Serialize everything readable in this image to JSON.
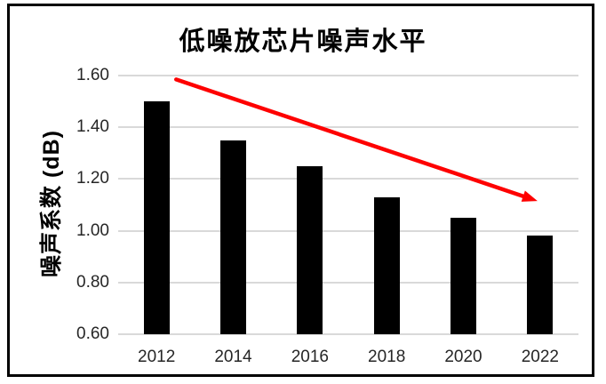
{
  "chart_data": {
    "type": "bar",
    "title": "低噪放芯片噪声水平",
    "ylabel": "噪声系数 (dB)",
    "xlabel": "",
    "categories": [
      "2012",
      "2014",
      "2016",
      "2018",
      "2020",
      "2022"
    ],
    "values": [
      1.5,
      1.35,
      1.25,
      1.13,
      1.05,
      0.98
    ],
    "ylim": [
      0.6,
      1.6
    ],
    "ytick_step": 0.2,
    "ytick_labels": [
      "0.60",
      "0.80",
      "1.00",
      "1.20",
      "1.40",
      "1.60"
    ],
    "grid": true,
    "legend_position": "none",
    "bar_color": "#000000",
    "gridline_color": "#d9d9d9",
    "trend_arrow": {
      "color": "#fe0000",
      "start_x_frac": 0.126,
      "start_value": 1.585,
      "end_x_frac": 0.911,
      "end_value": 1.115
    }
  }
}
